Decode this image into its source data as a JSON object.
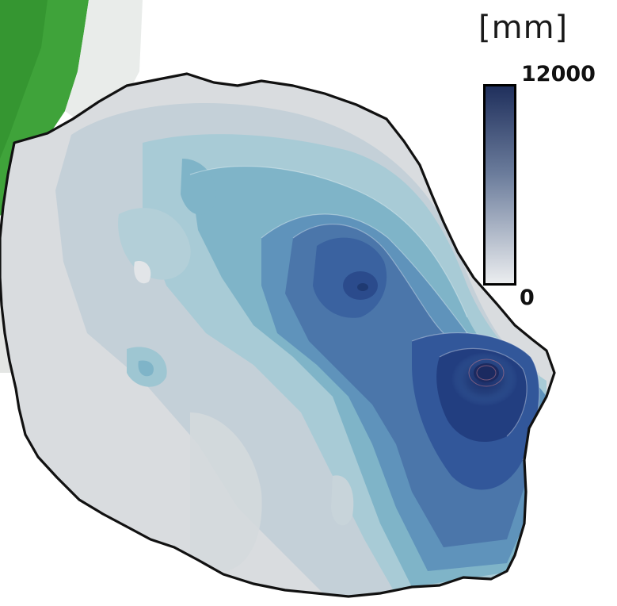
{
  "legend": {
    "unit": "[mm]",
    "max_label": "12000",
    "min_label": "0",
    "gradient_top_color": "#1f2f5c",
    "gradient_bottom_color": "#eceef0"
  },
  "colors": {
    "land_green": "#3fa33a",
    "outline": "#111111",
    "dry_gray": "#d9dcdf",
    "light_teal": "#9ec6d2",
    "mid_blue": "#4f7fae",
    "deep_navy": "#203a78"
  }
}
